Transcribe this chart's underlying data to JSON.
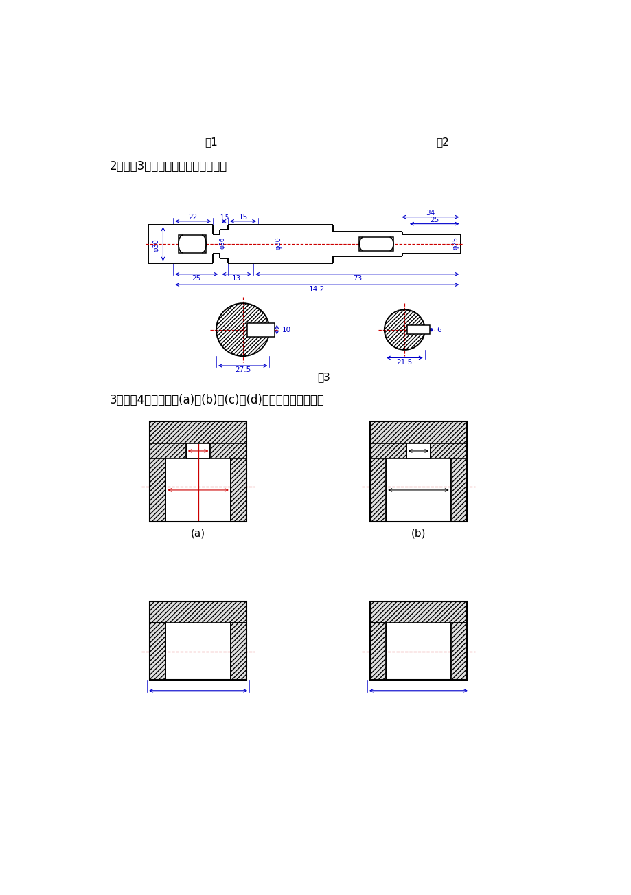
{
  "bg_color": "#ffffff",
  "title_fig1": "图1",
  "title_fig2": "图2",
  "title_fig3": "图3",
  "question2_text": "2．如图3所示，试标出其尺寸基准。",
  "question3_text": "3．如图4所示，判断(a)和(b)、(c)和(d)对错，并说明理由。",
  "label_a": "(a)",
  "label_b": "(b)",
  "blue": "#0000cc",
  "red": "#cc0000",
  "black": "#000000"
}
